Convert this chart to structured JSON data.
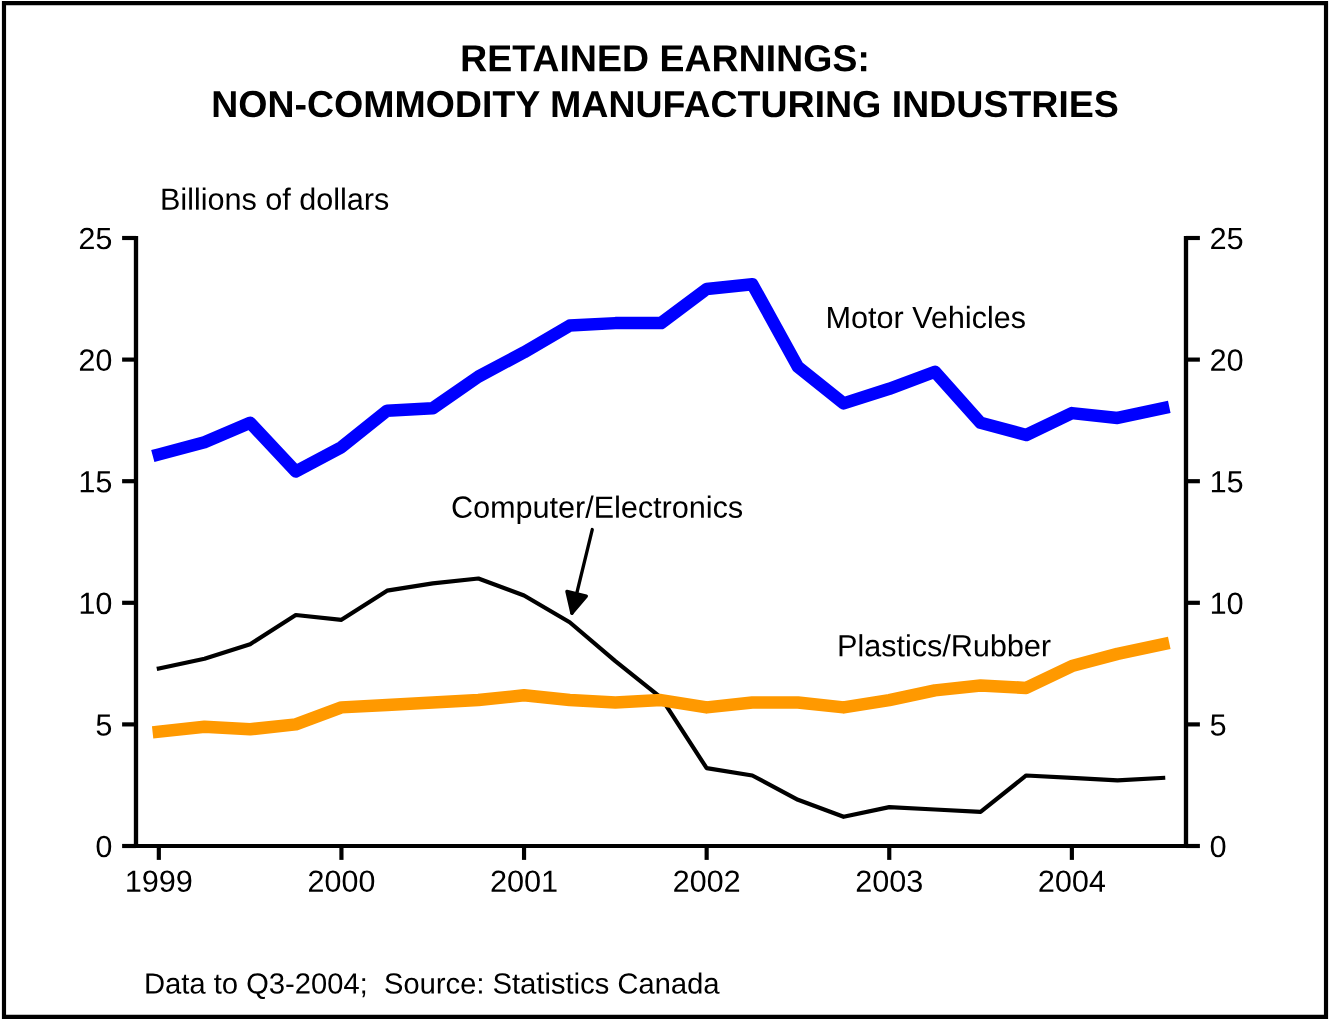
{
  "chart_data": {
    "type": "line",
    "title": "RETAINED EARNINGS:\nNON-COMMODITY MANUFACTURING INDUSTRIES",
    "ylabel": "Billions of dollars",
    "x": [
      1999.0,
      1999.25,
      1999.5,
      1999.75,
      2000.0,
      2000.25,
      2000.5,
      2000.75,
      2001.0,
      2001.25,
      2001.5,
      2001.75,
      2002.0,
      2002.25,
      2002.5,
      2002.75,
      2003.0,
      2003.25,
      2003.5,
      2003.75,
      2004.0,
      2004.25,
      2004.5
    ],
    "series": [
      {
        "name": "Motor Vehicles",
        "color": "#0000ff",
        "values": [
          16.1,
          16.6,
          17.4,
          15.4,
          16.4,
          17.9,
          18.0,
          19.3,
          20.3,
          21.4,
          21.5,
          21.5,
          22.9,
          23.1,
          19.7,
          18.2,
          18.8,
          19.5,
          17.4,
          16.9,
          17.8,
          17.6,
          18.0
        ]
      },
      {
        "name": "Computer/Electronics",
        "color": "#000000",
        "values": [
          7.3,
          7.7,
          8.3,
          9.5,
          9.3,
          10.5,
          10.8,
          11.0,
          10.3,
          9.2,
          7.6,
          6.1,
          3.2,
          2.9,
          1.9,
          1.2,
          1.6,
          1.5,
          1.4,
          2.9,
          2.8,
          2.7,
          2.8
        ]
      },
      {
        "name": "Plastics/Rubber",
        "color": "#ff9900",
        "values": [
          4.7,
          4.9,
          4.8,
          5.0,
          5.7,
          5.8,
          5.9,
          6.0,
          6.2,
          6.0,
          5.9,
          6.0,
          5.7,
          5.9,
          5.9,
          5.7,
          6.0,
          6.4,
          6.6,
          6.5,
          7.4,
          7.9,
          8.3
        ]
      }
    ],
    "xlim": [
      1998.875,
      2004.625
    ],
    "xticks": [
      1999,
      2000,
      2001,
      2002,
      2003,
      2004
    ],
    "ylim": [
      0,
      25
    ],
    "yticks": [
      0,
      5,
      10,
      15,
      20,
      25
    ],
    "y2lim": [
      0,
      25
    ],
    "y2ticks": [
      0,
      5,
      10,
      15,
      20,
      25
    ],
    "grid": false,
    "legend": false,
    "marker": "none",
    "line_style": "solid",
    "annotations": [
      "Data to Q3-2004;  Source: Statistics Canada"
    ]
  }
}
